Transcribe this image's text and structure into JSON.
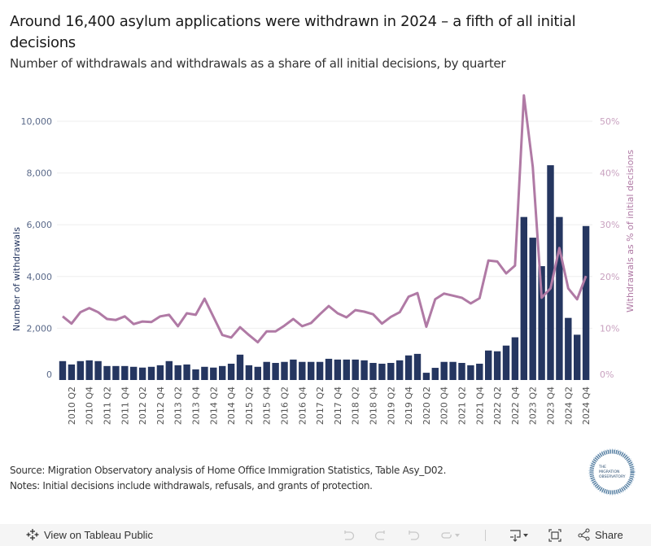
{
  "title": "Around 16,400 asylum applications were withdrawn in 2024 – a fifth of all initial decisions",
  "subtitle": "Number of withdrawals and withdrawals as a share of all initial decisions, by quarter",
  "notes": {
    "source": "Source: Migration Observatory analysis of Home Office Immigration Statistics, Table Asy_D02.",
    "note": "Notes: Initial decisions include withdrawals, refusals, and grants of protection."
  },
  "logo": {
    "line1": "THE",
    "line2": "MIGRATION",
    "line3": "OBSERVATORY"
  },
  "footer": {
    "view_on_tableau": "View on Tableau Public",
    "share": "Share",
    "icons": [
      "undo-icon",
      "redo-icon",
      "revert-icon",
      "refresh-icon",
      "download-icon",
      "fullscreen-icon",
      "share-icon"
    ]
  },
  "colors": {
    "bars": "#253660",
    "line": "#b07aa5",
    "grid": "#eeeeee"
  },
  "chart_data": {
    "type": "bar+line",
    "title": "Around 16,400 asylum applications were withdrawn in 2024 – a fifth of all initial decisions",
    "ylabel": "Number of withdrawals",
    "y2label": "Withdrawals as % of initial decisions",
    "ylim": [
      0,
      10000
    ],
    "y2lim": [
      0,
      50
    ],
    "yticks": [
      "0",
      "2,000",
      "4,000",
      "6,000",
      "8,000",
      "10,000"
    ],
    "y2ticks": [
      "0%",
      "10%",
      "20%",
      "30%",
      "40%",
      "50%"
    ],
    "grid": true,
    "categories": [
      "2010 Q1",
      "2010 Q2",
      "2010 Q3",
      "2010 Q4",
      "2011 Q1",
      "2011 Q2",
      "2011 Q3",
      "2011 Q4",
      "2012 Q1",
      "2012 Q2",
      "2012 Q3",
      "2012 Q4",
      "2013 Q1",
      "2013 Q2",
      "2013 Q3",
      "2013 Q4",
      "2014 Q1",
      "2014 Q2",
      "2014 Q3",
      "2014 Q4",
      "2015 Q1",
      "2015 Q2",
      "2015 Q3",
      "2015 Q4",
      "2016 Q1",
      "2016 Q2",
      "2016 Q3",
      "2016 Q4",
      "2017 Q1",
      "2017 Q2",
      "2017 Q3",
      "2017 Q4",
      "2018 Q1",
      "2018 Q2",
      "2018 Q3",
      "2018 Q4",
      "2019 Q1",
      "2019 Q2",
      "2019 Q3",
      "2019 Q4",
      "2020 Q1",
      "2020 Q2",
      "2020 Q3",
      "2020 Q4",
      "2021 Q1",
      "2021 Q2",
      "2021 Q3",
      "2021 Q4",
      "2022 Q1",
      "2022 Q2",
      "2022 Q3",
      "2022 Q4",
      "2023 Q1",
      "2023 Q2",
      "2023 Q3",
      "2023 Q4",
      "2024 Q1",
      "2024 Q2",
      "2024 Q3",
      "2024 Q4"
    ],
    "xtick_labels": [
      "2010 Q2",
      "2010 Q4",
      "2011 Q2",
      "2011 Q4",
      "2012 Q2",
      "2012 Q4",
      "2013 Q2",
      "2013 Q4",
      "2014 Q2",
      "2014 Q4",
      "2015 Q2",
      "2015 Q4",
      "2016 Q2",
      "2016 Q4",
      "2017 Q2",
      "2017 Q4",
      "2018 Q2",
      "2018 Q4",
      "2019 Q2",
      "2019 Q4",
      "2020 Q2",
      "2020 Q4",
      "2021 Q2",
      "2021 Q4",
      "2022 Q2",
      "2022 Q4",
      "2023 Q2",
      "2023 Q4",
      "2024 Q2",
      "2024 Q4"
    ],
    "series": [
      {
        "name": "Number of withdrawals",
        "type": "bar",
        "axis": "left",
        "values": [
          730,
          600,
          730,
          760,
          730,
          540,
          540,
          540,
          510,
          480,
          510,
          570,
          730,
          570,
          600,
          410,
          510,
          480,
          540,
          630,
          980,
          570,
          510,
          700,
          660,
          700,
          790,
          700,
          700,
          700,
          820,
          790,
          790,
          790,
          760,
          660,
          630,
          660,
          760,
          950,
          1010,
          280,
          470,
          700,
          700,
          660,
          570,
          630,
          1140,
          1110,
          1330,
          1650,
          6300,
          5500,
          4400,
          8300,
          6300,
          2400,
          1750,
          5950
        ]
      },
      {
        "name": "Withdrawals as % of initial decisions",
        "type": "line",
        "axis": "right",
        "values": [
          12.3,
          10.9,
          13.1,
          13.9,
          13.1,
          11.8,
          11.6,
          12.3,
          10.8,
          11.3,
          11.2,
          12.3,
          12.6,
          10.4,
          12.9,
          12.6,
          15.7,
          12.2,
          8.7,
          8.2,
          10.2,
          8.7,
          7.3,
          9.4,
          9.4,
          10.5,
          11.8,
          10.4,
          11.0,
          12.7,
          14.3,
          12.9,
          12.1,
          13.5,
          13.2,
          12.7,
          10.9,
          12.2,
          13.1,
          16.1,
          16.8,
          10.3,
          15.6,
          16.7,
          16.3,
          15.9,
          14.8,
          15.8,
          23.1,
          22.9,
          20.6,
          22.1,
          55.0,
          41.2,
          15.9,
          17.7,
          25.5,
          17.7,
          15.6,
          20.1
        ]
      }
    ]
  }
}
